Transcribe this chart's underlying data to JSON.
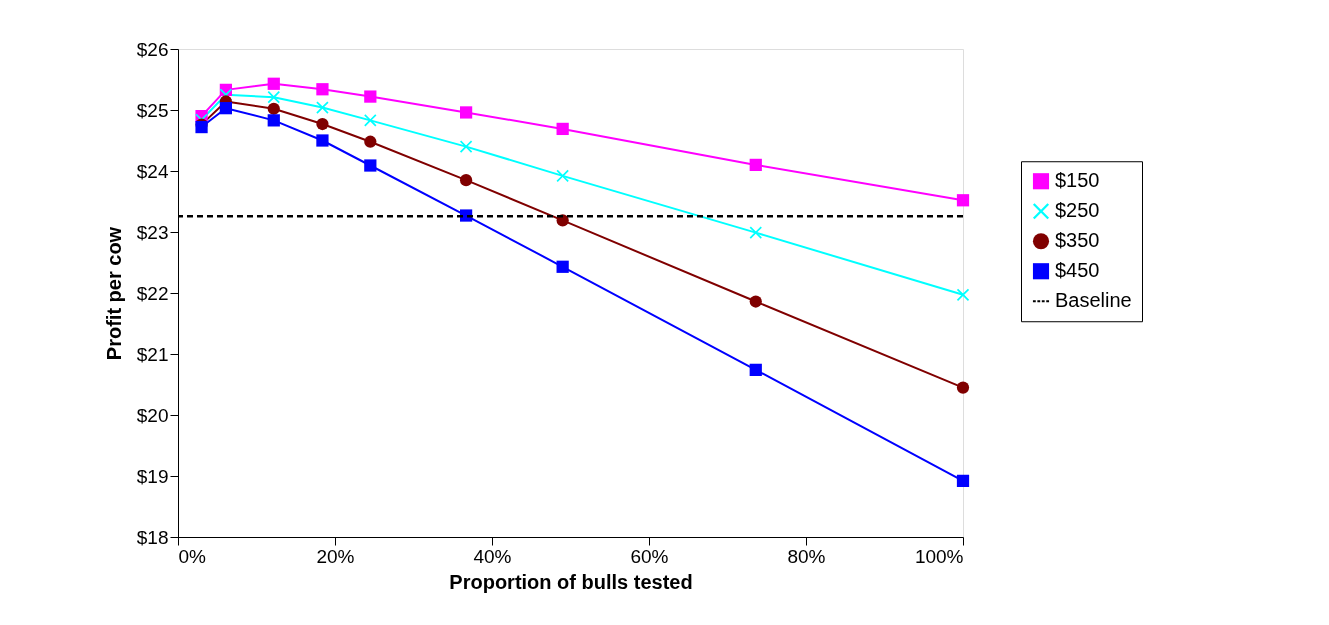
{
  "chart_data": {
    "type": "line",
    "xlabel": "Proportion of bulls tested",
    "ylabel": "Profit per cow",
    "x": [
      3,
      6.1,
      12.2,
      18.4,
      24.5,
      36.7,
      49,
      73.6,
      100
    ],
    "series": [
      {
        "name": "$150",
        "color": "#ff00ff",
        "marker": "square",
        "values": [
          24.9,
          25.33,
          25.43,
          25.34,
          25.22,
          24.96,
          24.69,
          24.1,
          23.52
        ]
      },
      {
        "name": "$250",
        "color": "#00ffff",
        "marker": "cross",
        "values": [
          24.84,
          25.25,
          25.21,
          25.04,
          24.83,
          24.4,
          23.92,
          22.99,
          21.97
        ]
      },
      {
        "name": "$350",
        "color": "#800000",
        "marker": "circle",
        "values": [
          24.76,
          25.14,
          25.02,
          24.77,
          24.48,
          23.85,
          23.19,
          21.86,
          20.45
        ]
      },
      {
        "name": "$450",
        "color": "#0000ff",
        "marker": "square",
        "values": [
          24.72,
          25.03,
          24.83,
          24.5,
          24.09,
          23.27,
          22.43,
          20.74,
          18.92
        ]
      }
    ],
    "ref_lines": [
      {
        "axis": "y",
        "value": 23.26,
        "label": "Baseline",
        "color": "#000000",
        "line_style": "dashed"
      }
    ],
    "xlim": [
      0,
      100
    ],
    "xticks": [
      {
        "value": 0,
        "label": "0%"
      },
      {
        "value": 20,
        "label": "20%"
      },
      {
        "value": 40,
        "label": "40%"
      },
      {
        "value": 60,
        "label": "60%"
      },
      {
        "value": 80,
        "label": "80%"
      },
      {
        "value": 100,
        "label": "100%"
      }
    ],
    "ylim": [
      18,
      26
    ],
    "yticks": [
      {
        "value": 18,
        "label": "$18"
      },
      {
        "value": 19,
        "label": "$19"
      },
      {
        "value": 20,
        "label": "$20"
      },
      {
        "value": 21,
        "label": "$21"
      },
      {
        "value": 22,
        "label": "$22"
      },
      {
        "value": 23,
        "label": "$23"
      },
      {
        "value": 24,
        "label": "$24"
      },
      {
        "value": 25,
        "label": "$25"
      },
      {
        "value": 26,
        "label": "$26"
      }
    ],
    "grid": false,
    "legend": "right",
    "line_style": "solid"
  }
}
